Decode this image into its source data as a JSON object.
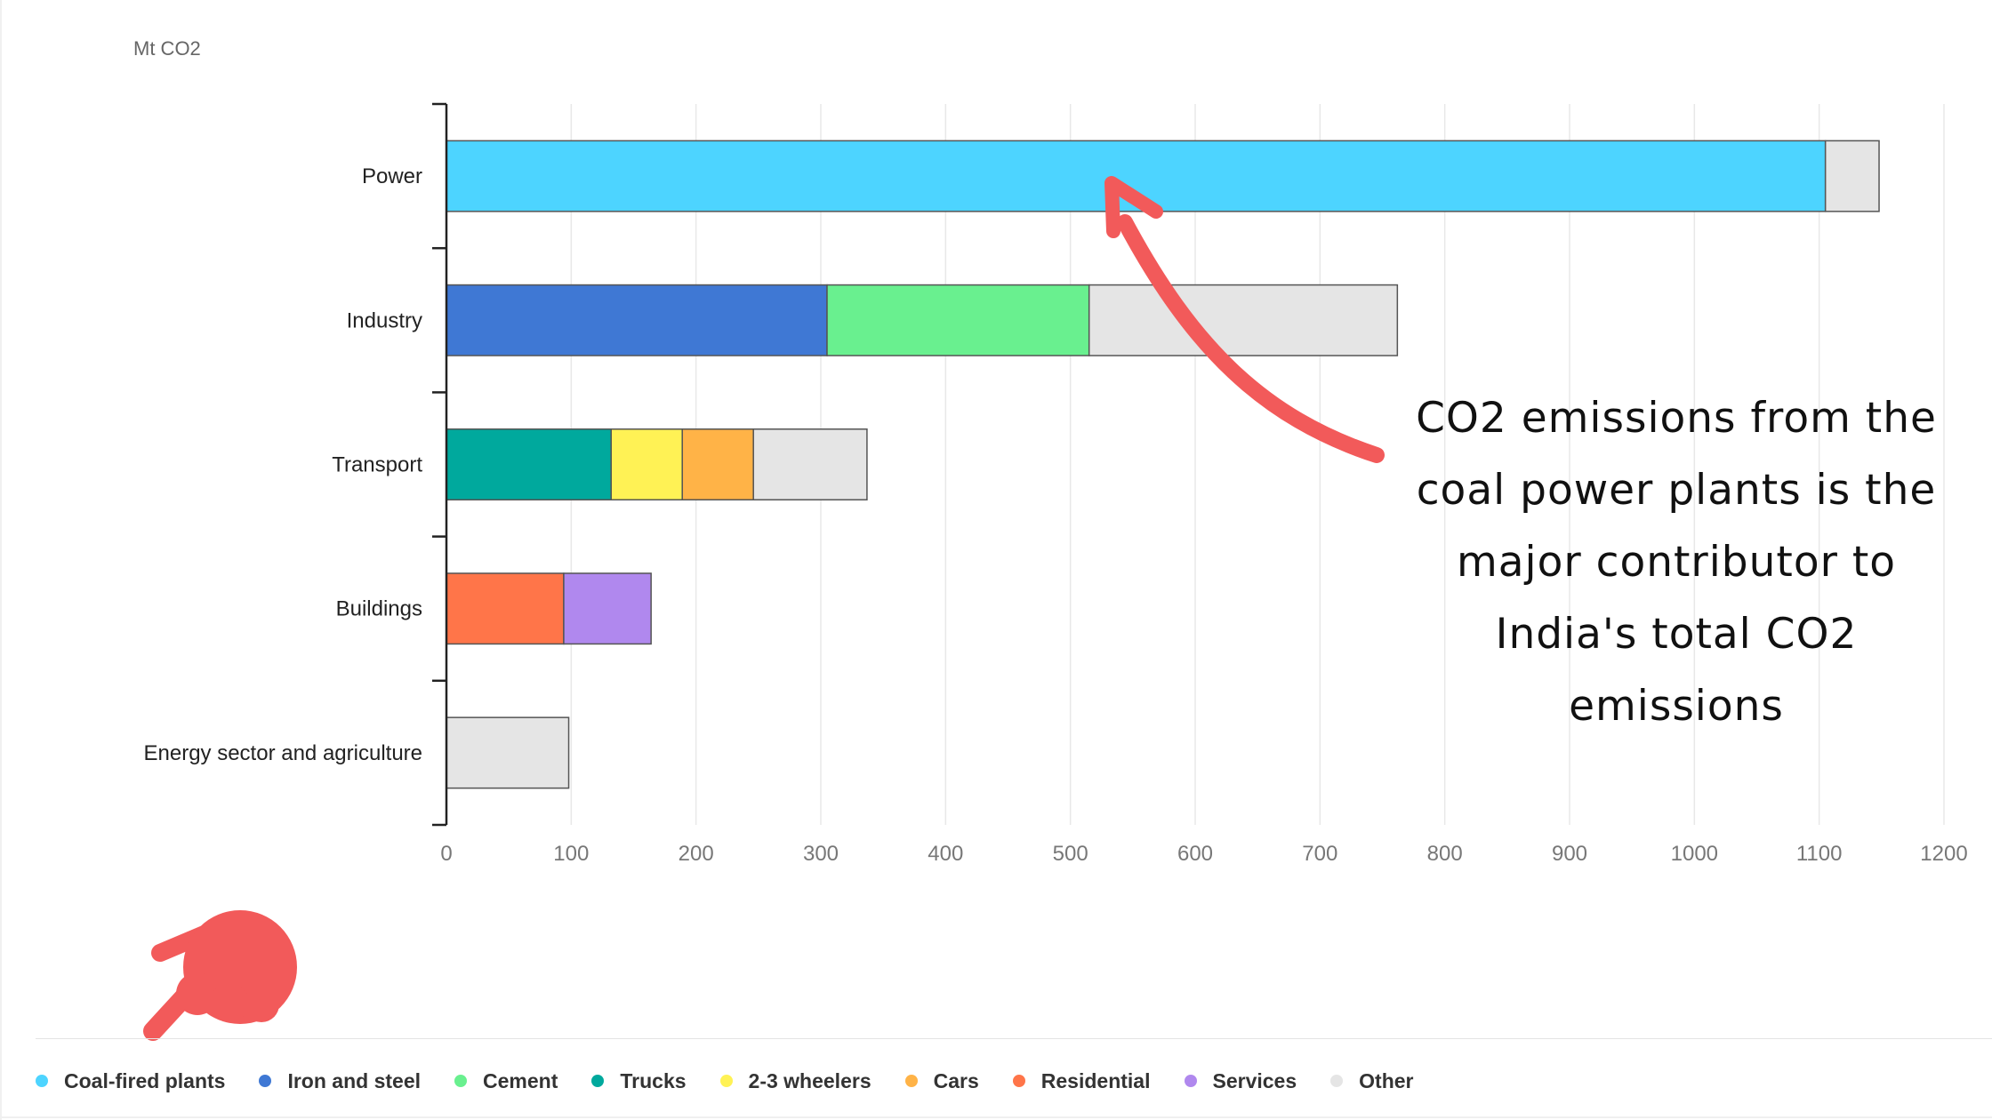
{
  "chart_data": {
    "type": "bar",
    "orientation": "horizontal",
    "stacked": true,
    "unit_label": "Mt CO2",
    "categories": [
      "Power",
      "Industry",
      "Transport",
      "Buildings",
      "Energy sector and agriculture"
    ],
    "series": [
      {
        "name": "Coal-fired plants",
        "color": "#4dd4ff",
        "values": [
          1105,
          0,
          0,
          0,
          0
        ]
      },
      {
        "name": "Iron and steel",
        "color": "#3f78d4",
        "values": [
          0,
          305,
          0,
          0,
          0
        ]
      },
      {
        "name": "Cement",
        "color": "#69f08f",
        "values": [
          0,
          210,
          0,
          0,
          0
        ]
      },
      {
        "name": "Trucks",
        "color": "#00a99d",
        "values": [
          0,
          0,
          132,
          0,
          0
        ]
      },
      {
        "name": "2-3 wheelers",
        "color": "#fff255",
        "values": [
          0,
          0,
          57,
          0,
          0
        ]
      },
      {
        "name": "Cars",
        "color": "#ffb347",
        "values": [
          0,
          0,
          57,
          0,
          0
        ]
      },
      {
        "name": "Residential",
        "color": "#ff7549",
        "values": [
          0,
          0,
          0,
          94,
          0
        ]
      },
      {
        "name": "Services",
        "color": "#b088ee",
        "values": [
          0,
          0,
          0,
          70,
          0
        ]
      },
      {
        "name": "Other",
        "color": "#e5e5e5",
        "values": [
          43,
          247,
          91,
          0,
          98
        ]
      }
    ],
    "xlim": [
      0,
      1200
    ],
    "x_ticks": [
      0,
      100,
      200,
      300,
      400,
      500,
      600,
      700,
      800,
      900,
      1000,
      1100,
      1200
    ],
    "grid": true,
    "legend_position": "bottom"
  },
  "annotation": {
    "lines": [
      "CO2 emissions from the",
      "coal power plants is the",
      "major contributor to",
      "India's total CO2",
      "emissions"
    ],
    "arrow_color": "#f25a5a"
  },
  "icons": {
    "annotation_arrow": "curved-arrow-icon",
    "pointer": "pointing-hand-icon"
  }
}
